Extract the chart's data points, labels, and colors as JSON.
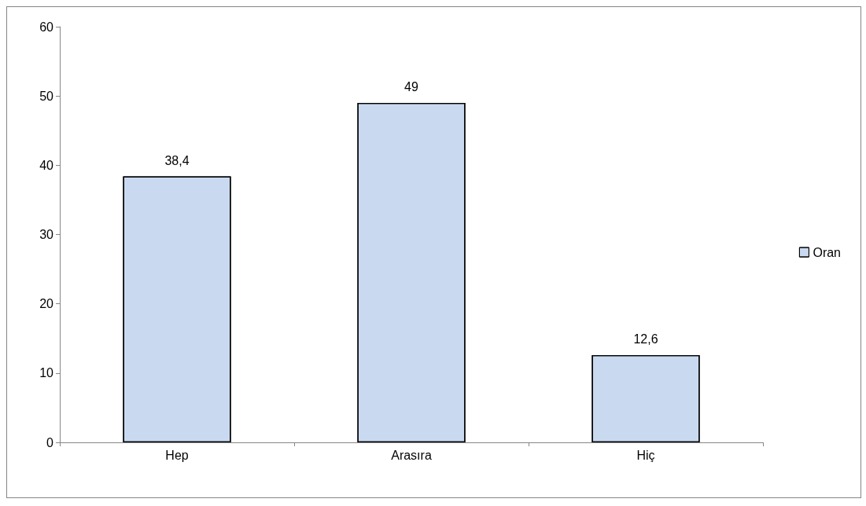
{
  "chart_data": {
    "type": "bar",
    "categories": [
      "Hep",
      "Arasıra",
      "Hiç"
    ],
    "series": [
      {
        "name": "Oran",
        "color": "#c9daf0",
        "values": [
          38.4,
          49,
          12.6
        ],
        "value_labels": [
          "38,4",
          "49",
          "12,6"
        ]
      }
    ],
    "ylim": [
      0,
      60
    ],
    "yticks": [
      0,
      10,
      20,
      30,
      40,
      50,
      60
    ],
    "grid": false,
    "legend": "right"
  }
}
